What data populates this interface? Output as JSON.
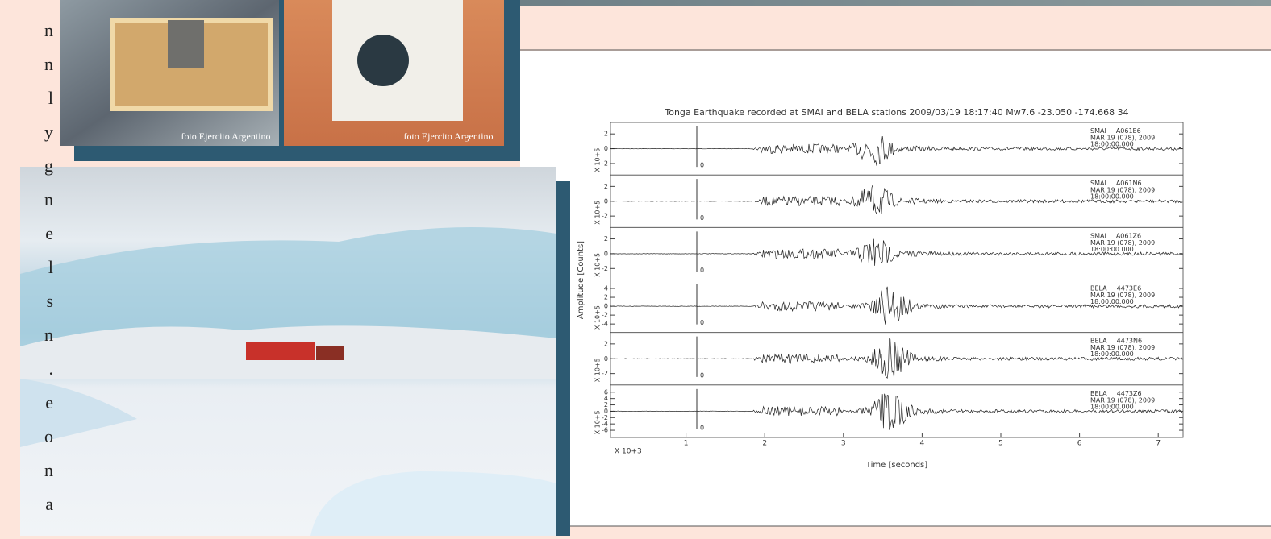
{
  "left_text_fragments": [
    "n",
    "n",
    "l",
    "y",
    "g",
    "n",
    "e",
    "l",
    "s",
    "n",
    ".",
    "e",
    "o",
    "n",
    "a"
  ],
  "photo_captions": [
    "foto Ejercito Argentino",
    "foto Ejercito Argentino"
  ],
  "figure": {
    "title": "Tonga Earthquake recorded at SMAI and BELA stations 2009/03/19 18:17:40 Mw7.6 -23.050 -174.668 34",
    "y_label": "Amplitude [Counts]",
    "x_label": "Time [seconds]",
    "x_multiplier": "X 10+3",
    "xticks": [
      1,
      2,
      3,
      4,
      5,
      6,
      7
    ],
    "panels": [
      {
        "station": "SMAI",
        "channel": "A061E6",
        "date": "MAR 19 (078), 2009",
        "time": "18:00:00.000",
        "marker": "0",
        "multiplier": "X 10+5",
        "ylim": [
          -3,
          3
        ],
        "yticks": [
          2,
          0,
          -2
        ]
      },
      {
        "station": "SMAI",
        "channel": "A061N6",
        "date": "MAR 19 (078), 2009",
        "time": "18:00:00.000",
        "marker": "0",
        "multiplier": "X 10+5",
        "ylim": [
          -3,
          3
        ],
        "yticks": [
          2,
          0,
          -2
        ]
      },
      {
        "station": "SMAI",
        "channel": "A061Z6",
        "date": "MAR 19 (078), 2009",
        "time": "18:00:00.000",
        "marker": "0",
        "multiplier": "X 10+5",
        "ylim": [
          -3,
          3
        ],
        "yticks": [
          2,
          0,
          -2
        ]
      },
      {
        "station": "BELA",
        "channel": "4473E6",
        "date": "MAR 19 (078), 2009",
        "time": "18:00:00.000",
        "marker": "0",
        "multiplier": "X 10+5",
        "ylim": [
          -5,
          5
        ],
        "yticks": [
          4,
          2,
          0,
          -2,
          -4
        ]
      },
      {
        "station": "BELA",
        "channel": "4473N6",
        "date": "MAR 19 (078), 2009",
        "time": "18:00:00.000",
        "marker": "0",
        "multiplier": "X 10+5",
        "ylim": [
          -3,
          3
        ],
        "yticks": [
          2,
          0,
          -2
        ]
      },
      {
        "station": "BELA",
        "channel": "4473Z6",
        "date": "MAR 19 (078), 2009",
        "time": "18:00:00.000",
        "marker": "0",
        "multiplier": "X 10+5",
        "ylim": [
          -7,
          7
        ],
        "yticks": [
          6,
          4,
          2,
          0,
          -2,
          -4,
          -6
        ]
      }
    ]
  }
}
